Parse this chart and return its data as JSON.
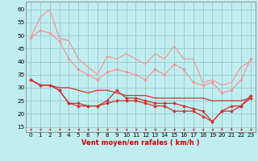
{
  "title": "",
  "xlabel": "Vent moyen/en rafales ( km/h )",
  "background_color": "#c0eef0",
  "grid_color": "#98c8ca",
  "x": [
    0,
    1,
    2,
    3,
    4,
    5,
    6,
    7,
    8,
    9,
    10,
    11,
    12,
    13,
    14,
    15,
    16,
    17,
    18,
    19,
    20,
    21,
    22,
    23
  ],
  "ylim": [
    13,
    63
  ],
  "yticks": [
    15,
    20,
    25,
    30,
    35,
    40,
    45,
    50,
    55,
    60
  ],
  "series": [
    {
      "name": "rafales_top",
      "color": "#f09898",
      "linewidth": 0.9,
      "marker": null,
      "values": [
        49,
        57,
        60,
        49,
        48,
        41,
        38,
        35,
        42,
        41,
        43,
        41,
        39,
        43,
        41,
        46,
        41,
        41,
        32,
        33,
        31,
        32,
        38,
        40
      ]
    },
    {
      "name": "rafales_mean",
      "color": "#f09898",
      "linewidth": 0.9,
      "marker": "D",
      "markersize": 1.8,
      "values": [
        49,
        52,
        51,
        48,
        41,
        37,
        35,
        33,
        36,
        37,
        36,
        35,
        33,
        37,
        35,
        39,
        37,
        32,
        31,
        32,
        28,
        29,
        33,
        41
      ]
    },
    {
      "name": "vent_upper",
      "color": "#d03030",
      "linewidth": 0.9,
      "marker": null,
      "values": [
        33,
        31,
        31,
        30,
        30,
        29,
        28,
        29,
        29,
        28,
        27,
        27,
        27,
        26,
        26,
        26,
        26,
        26,
        26,
        25,
        25,
        25,
        25,
        26
      ]
    },
    {
      "name": "vent_mean",
      "color": "#d03030",
      "linewidth": 0.9,
      "marker": "D",
      "markersize": 1.8,
      "values": [
        33,
        31,
        31,
        29,
        24,
        24,
        23,
        23,
        25,
        29,
        26,
        26,
        25,
        24,
        24,
        24,
        23,
        22,
        21,
        17,
        21,
        23,
        23,
        27
      ]
    },
    {
      "name": "vent_lower",
      "color": "#d03030",
      "linewidth": 0.9,
      "marker": "D",
      "markersize": 1.8,
      "values": [
        33,
        31,
        31,
        29,
        24,
        23,
        23,
        23,
        24,
        25,
        25,
        25,
        24,
        23,
        23,
        21,
        21,
        21,
        19,
        17,
        21,
        21,
        23,
        26
      ]
    }
  ],
  "arrow_color": "#cc2020",
  "xlabel_color": "#cc0000",
  "xlabel_fontsize": 6.0,
  "tick_fontsize": 5.2,
  "spine_color": "#909090"
}
